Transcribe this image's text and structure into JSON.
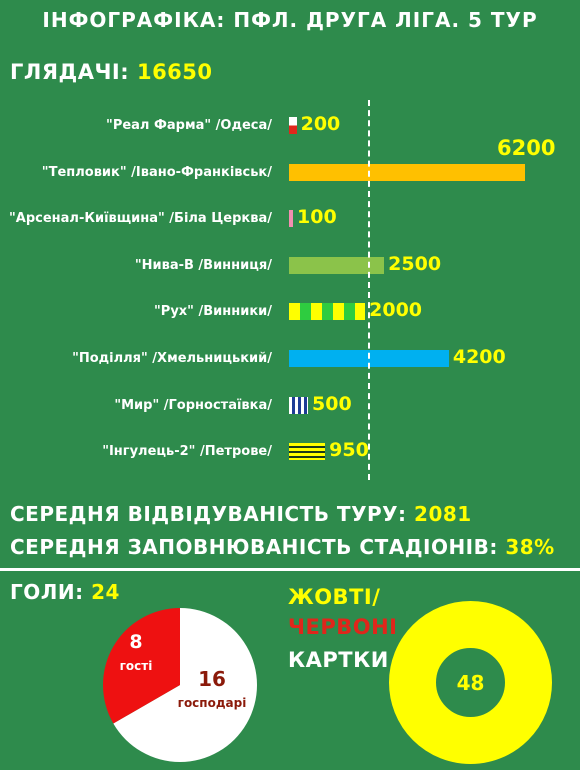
{
  "header": {
    "title": "ІНФОГРАФІКА: ПФЛ. ДРУГА ЛІГА. 5 ТУР"
  },
  "viewers": {
    "label": "ГЛЯДАЧІ:",
    "value": "16650"
  },
  "chart_data": {
    "type": "bar",
    "orientation": "horizontal",
    "categories": [
      "\"Реал Фарма\" /Одеса/",
      "\"Тепловик\" /Івано-Франківськ/",
      "\"Арсенал-Київщина\" /Біла Церква/",
      "\"Нива-В /Винниця/",
      "\"Рух\" /Винники/",
      "\"Поділля\" /Хмельницький/",
      "\"Мир\" /Горностаївка/",
      "\"Інгулець-2\" /Петрове/"
    ],
    "values": [
      200,
      6200,
      100,
      2500,
      2000,
      4200,
      500,
      950
    ],
    "value_labels": [
      "200",
      "6200",
      "100",
      "2500",
      "2000",
      "4200",
      "500",
      "950"
    ],
    "bar_styles": [
      {
        "type": "stripes-h",
        "colors": [
          "#ffffff",
          "#e0261b"
        ]
      },
      {
        "type": "solid",
        "colors": [
          "#ffc000"
        ]
      },
      {
        "type": "solid",
        "colors": [
          "#f48fb1"
        ]
      },
      {
        "type": "solid",
        "colors": [
          "#8bc34a"
        ]
      },
      {
        "type": "checker",
        "colors": [
          "#ffff00",
          "#2ecc40"
        ]
      },
      {
        "type": "solid",
        "colors": [
          "#00b0f0"
        ]
      },
      {
        "type": "stripes-v",
        "colors": [
          "#ffffff",
          "#1e3c96"
        ]
      },
      {
        "type": "stripes-h",
        "colors": [
          "#ffff00",
          "#1a3a1a"
        ]
      }
    ],
    "reference_line": {
      "value": 2081,
      "style": "dashed"
    },
    "xlim": [
      0,
      6200
    ]
  },
  "stats": {
    "attendance_label": "СЕРЕДНЯ ВІДВІДУВАНІСТЬ ТУРУ:",
    "attendance_value": "2081",
    "fill_label": "СЕРЕДНЯ ЗАПОВНЮВАНІСТЬ СТАДІОНІВ:",
    "fill_value": "38%"
  },
  "goals": {
    "label": "ГОЛИ:",
    "total": "24",
    "away_value": "8",
    "away_label": "гості",
    "home_value": "16",
    "home_label": "господарі",
    "away_count": 8,
    "home_count": 16,
    "colors": {
      "away": "#ee1111",
      "home": "#ffffff"
    }
  },
  "cards": {
    "label_yellow": "ЖОВТІ/",
    "label_red": "ЧЕРВОНІ",
    "label_cards": "КАРТКИ",
    "total": "48",
    "ring_color": "#ffff00"
  }
}
